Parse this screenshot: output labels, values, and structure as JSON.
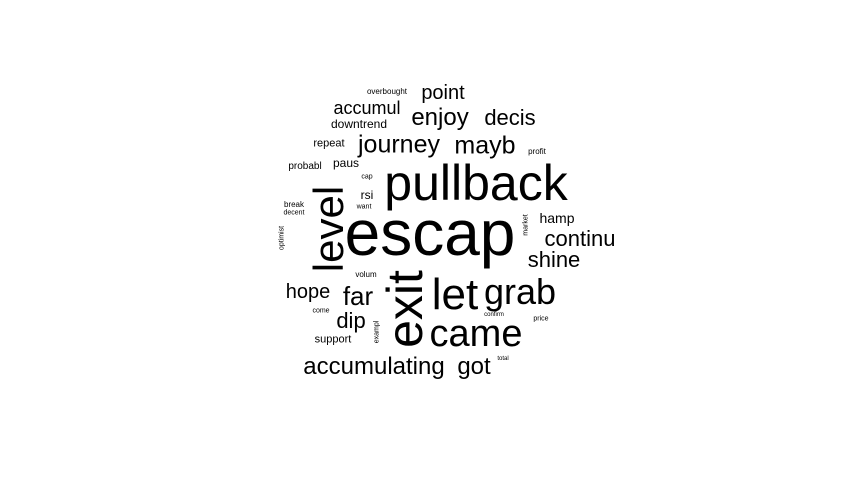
{
  "words": [
    {
      "text": "escap",
      "color": "#000000"
    },
    {
      "text": "pullback",
      "color": "#000000"
    },
    {
      "text": "exit",
      "color": "#000000"
    },
    {
      "text": "level",
      "color": "#000000"
    },
    {
      "text": "let",
      "color": "#000000"
    },
    {
      "text": "came",
      "color": "#000000"
    },
    {
      "text": "grab",
      "color": "#000000"
    },
    {
      "text": "journey",
      "color": "#000000"
    },
    {
      "text": "mayb",
      "color": "#000000"
    },
    {
      "text": "accumulating",
      "color": "#000000"
    },
    {
      "text": "got",
      "color": "#000000"
    },
    {
      "text": "enjoy",
      "color": "#000000"
    },
    {
      "text": "decis",
      "color": "#000000"
    },
    {
      "text": "continu",
      "color": "#000000"
    },
    {
      "text": "shine",
      "color": "#000000"
    },
    {
      "text": "far",
      "color": "#000000"
    },
    {
      "text": "point",
      "color": "#000000"
    },
    {
      "text": "accumul",
      "color": "#000000"
    },
    {
      "text": "hope",
      "color": "#000000"
    },
    {
      "text": "dip",
      "color": "#000000"
    },
    {
      "text": "hamp",
      "color": "#000000"
    },
    {
      "text": "downtrend",
      "color": "#000000"
    },
    {
      "text": "repeat",
      "color": "#000000"
    },
    {
      "text": "paus",
      "color": "#000000"
    },
    {
      "text": "rsi",
      "color": "#000000"
    },
    {
      "text": "support",
      "color": "#000000"
    },
    {
      "text": "probabl",
      "color": "#000000"
    },
    {
      "text": "overbought",
      "color": "#000000"
    },
    {
      "text": "profit",
      "color": "#000000"
    },
    {
      "text": "break",
      "color": "#000000"
    },
    {
      "text": "volum",
      "color": "#000000"
    },
    {
      "text": "cap",
      "color": "#000000"
    },
    {
      "text": "want",
      "color": "#000000"
    },
    {
      "text": "decent",
      "color": "#000000"
    },
    {
      "text": "optimist",
      "color": "#000000"
    },
    {
      "text": "market",
      "color": "#000000"
    },
    {
      "text": "exampl",
      "color": "#000000"
    },
    {
      "text": "price",
      "color": "#000000"
    },
    {
      "text": "come",
      "color": "#000000"
    },
    {
      "text": "confirm",
      "color": "#000000"
    },
    {
      "text": "total",
      "color": "#000000"
    }
  ]
}
